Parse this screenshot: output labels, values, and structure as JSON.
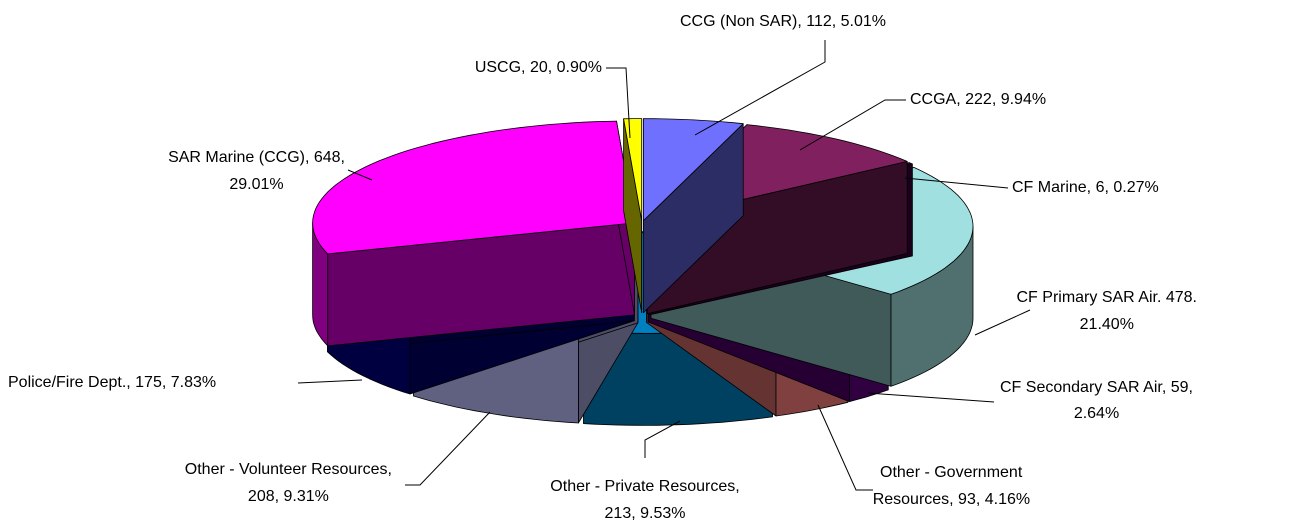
{
  "chart_data": {
    "type": "pie3d",
    "values": [
      112,
      222,
      6,
      478,
      59,
      93,
      213,
      208,
      175,
      648,
      20
    ],
    "value_labels": [
      [
        "CCG (Non SAR), 112, 5.01%"
      ],
      [
        "CCGA, 222, 9.94%"
      ],
      [
        "CF Marine, 6, 0.27%"
      ],
      [
        "CF Primary SAR Air. 478.",
        "21.40%"
      ],
      [
        "CF Secondary SAR Air, 59,",
        "2.64%"
      ],
      [
        "Other - Government",
        "Resources, 93, 4.16%"
      ],
      [
        "Other - Private Resources,",
        "213, 9.53%"
      ],
      [
        "Other - Volunteer Resources,",
        "208, 9.31%"
      ],
      [
        "Police/Fire Dept., 175, 7.83%"
      ],
      [
        "SAR Marine (CCG), 648,",
        "29.01%"
      ],
      [
        "USCG, 20, 0.90%"
      ]
    ],
    "colors": [
      "#7070ff",
      "#80205f",
      "#400040",
      "#a0e0e0",
      "#600080",
      "#ff8080",
      "#0080c0",
      "#c0c0ff",
      "#000080",
      "#ff00ff",
      "#ffff00"
    ]
  }
}
